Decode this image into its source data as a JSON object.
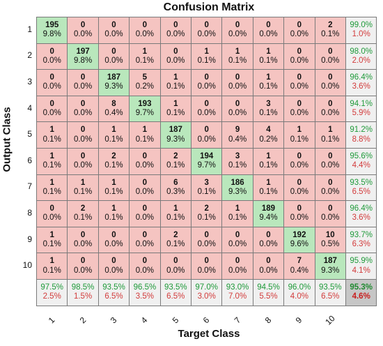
{
  "chart_data": {
    "type": "heatmap",
    "title": "Confusion Matrix",
    "xlabel": "Target Class",
    "ylabel": "Output Class",
    "classes": [
      "1",
      "2",
      "3",
      "4",
      "5",
      "6",
      "7",
      "8",
      "9",
      "10"
    ],
    "counts": [
      [
        195,
        0,
        0,
        0,
        0,
        0,
        0,
        0,
        0,
        2
      ],
      [
        0,
        197,
        0,
        1,
        0,
        1,
        1,
        1,
        0,
        0
      ],
      [
        0,
        0,
        187,
        5,
        1,
        0,
        0,
        1,
        0,
        0
      ],
      [
        0,
        0,
        8,
        193,
        1,
        0,
        0,
        3,
        0,
        0
      ],
      [
        1,
        0,
        1,
        1,
        187,
        0,
        9,
        4,
        1,
        1
      ],
      [
        1,
        0,
        2,
        0,
        2,
        194,
        3,
        1,
        0,
        0
      ],
      [
        1,
        1,
        1,
        0,
        6,
        3,
        186,
        1,
        0,
        0
      ],
      [
        0,
        2,
        1,
        0,
        1,
        2,
        1,
        189,
        0,
        0
      ],
      [
        1,
        0,
        0,
        0,
        2,
        0,
        0,
        0,
        192,
        10
      ],
      [
        1,
        0,
        0,
        0,
        0,
        0,
        0,
        0,
        7,
        187
      ]
    ],
    "percents": [
      [
        "9.8%",
        "0.0%",
        "0.0%",
        "0.0%",
        "0.0%",
        "0.0%",
        "0.0%",
        "0.0%",
        "0.0%",
        "0.1%"
      ],
      [
        "0.0%",
        "9.8%",
        "0.0%",
        "0.1%",
        "0.0%",
        "0.1%",
        "0.1%",
        "0.1%",
        "0.0%",
        "0.0%"
      ],
      [
        "0.0%",
        "0.0%",
        "9.3%",
        "0.2%",
        "0.1%",
        "0.0%",
        "0.0%",
        "0.1%",
        "0.0%",
        "0.0%"
      ],
      [
        "0.0%",
        "0.0%",
        "0.4%",
        "9.7%",
        "0.1%",
        "0.0%",
        "0.0%",
        "0.1%",
        "0.0%",
        "0.0%"
      ],
      [
        "0.1%",
        "0.0%",
        "0.1%",
        "0.1%",
        "9.3%",
        "0.0%",
        "0.4%",
        "0.2%",
        "0.1%",
        "0.1%"
      ],
      [
        "0.1%",
        "0.0%",
        "0.1%",
        "0.0%",
        "0.1%",
        "9.7%",
        "0.1%",
        "0.1%",
        "0.0%",
        "0.0%"
      ],
      [
        "0.1%",
        "0.1%",
        "0.1%",
        "0.0%",
        "0.3%",
        "0.1%",
        "9.3%",
        "0.1%",
        "0.0%",
        "0.0%"
      ],
      [
        "0.0%",
        "0.1%",
        "0.1%",
        "0.0%",
        "0.1%",
        "0.1%",
        "0.1%",
        "9.4%",
        "0.0%",
        "0.0%"
      ],
      [
        "0.1%",
        "0.0%",
        "0.0%",
        "0.0%",
        "0.1%",
        "0.0%",
        "0.0%",
        "0.0%",
        "9.6%",
        "0.5%"
      ],
      [
        "0.1%",
        "0.0%",
        "0.0%",
        "0.0%",
        "0.0%",
        "0.0%",
        "0.0%",
        "0.0%",
        "0.4%",
        "9.3%"
      ]
    ],
    "row_summary": [
      [
        "99.0%",
        "1.0%"
      ],
      [
        "98.0%",
        "2.0%"
      ],
      [
        "96.4%",
        "3.6%"
      ],
      [
        "94.1%",
        "5.9%"
      ],
      [
        "91.2%",
        "8.8%"
      ],
      [
        "95.6%",
        "4.4%"
      ],
      [
        "93.5%",
        "6.5%"
      ],
      [
        "96.4%",
        "3.6%"
      ],
      [
        "93.7%",
        "6.3%"
      ],
      [
        "95.9%",
        "4.1%"
      ]
    ],
    "col_summary": [
      [
        "97.5%",
        "2.5%"
      ],
      [
        "98.5%",
        "1.5%"
      ],
      [
        "93.5%",
        "6.5%"
      ],
      [
        "96.5%",
        "3.5%"
      ],
      [
        "93.5%",
        "6.5%"
      ],
      [
        "97.0%",
        "3.0%"
      ],
      [
        "93.0%",
        "7.0%"
      ],
      [
        "94.5%",
        "5.5%"
      ],
      [
        "96.0%",
        "4.0%"
      ],
      [
        "93.5%",
        "6.5%"
      ]
    ],
    "overall": [
      "95.3%",
      "4.6%"
    ],
    "colors": {
      "diagonal": "#b9e7bc",
      "off_diagonal": "#f5c4c1",
      "summary": "#f0f0f0",
      "overall": "#c6c6c6",
      "correct_text": "#1f9a3a",
      "error_text": "#d23b3b"
    }
  }
}
